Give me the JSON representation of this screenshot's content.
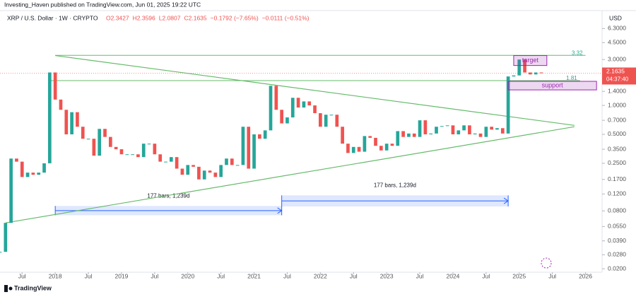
{
  "header": {
    "publisher": "Investing_Haven published on TradingView.com, Jun 01, 2025 19:22 UTC"
  },
  "footer": {
    "brand": "TradingView"
  },
  "chart_data": {
    "type": "candlestick",
    "symbol": "XRP / U.S. Dollar · 1W · CRYPTO",
    "ohlc": [
      "O2.3427",
      "H2.3596",
      "L2.0807",
      "C2.1635",
      "−0.1792 (−7.65%)"
    ],
    "extra": "−0.0111 (−0.51%)",
    "currency": "USD",
    "log_scale": true,
    "up_color": "#26a69a",
    "down_color": "#ef5350",
    "x": [
      "2017-03",
      "2017-04",
      "2017-05",
      "2017-06",
      "2017-07",
      "2017-08",
      "2017-09",
      "2017-10",
      "2017-11",
      "2017-12",
      "2018-01",
      "2018-02",
      "2018-03",
      "2018-04",
      "2018-05",
      "2018-06",
      "2018-07",
      "2018-08",
      "2018-09",
      "2018-10",
      "2018-11",
      "2018-12",
      "2019-01",
      "2019-02",
      "2019-03",
      "2019-04",
      "2019-05",
      "2019-06",
      "2019-07",
      "2019-08",
      "2019-09",
      "2019-10",
      "2019-11",
      "2019-12",
      "2020-01",
      "2020-02",
      "2020-03",
      "2020-04",
      "2020-05",
      "2020-06",
      "2020-07",
      "2020-08",
      "2020-09",
      "2020-10",
      "2020-11",
      "2020-12",
      "2021-01",
      "2021-02",
      "2021-03",
      "2021-04",
      "2021-05",
      "2021-06",
      "2021-07",
      "2021-08",
      "2021-09",
      "2021-10",
      "2021-11",
      "2021-12",
      "2022-01",
      "2022-02",
      "2022-03",
      "2022-04",
      "2022-05",
      "2022-06",
      "2022-07",
      "2022-08",
      "2022-09",
      "2022-10",
      "2022-11",
      "2022-12",
      "2023-01",
      "2023-02",
      "2023-03",
      "2023-04",
      "2023-05",
      "2023-06",
      "2023-07",
      "2023-08",
      "2023-09",
      "2023-10",
      "2023-11",
      "2023-12",
      "2024-01",
      "2024-02",
      "2024-03",
      "2024-04",
      "2024-05",
      "2024-06",
      "2024-07",
      "2024-08",
      "2024-09",
      "2024-10",
      "2024-11",
      "2024-12",
      "2025-01",
      "2025-02",
      "2025-03",
      "2025-04",
      "2025-05"
    ],
    "values": [
      0.03,
      0.06,
      0.28,
      0.26,
      0.18,
      0.2,
      0.19,
      0.2,
      0.25,
      2.2,
      1.15,
      0.9,
      0.5,
      0.85,
      0.6,
      0.45,
      0.45,
      0.3,
      0.57,
      0.47,
      0.37,
      0.35,
      0.31,
      0.31,
      0.31,
      0.29,
      0.4,
      0.4,
      0.31,
      0.26,
      0.26,
      0.29,
      0.22,
      0.19,
      0.24,
      0.23,
      0.17,
      0.21,
      0.2,
      0.18,
      0.24,
      0.28,
      0.24,
      0.24,
      0.6,
      0.22,
      0.5,
      0.45,
      0.55,
      1.6,
      0.9,
      0.65,
      0.75,
      1.2,
      0.95,
      1.1,
      1.0,
      0.83,
      0.6,
      0.8,
      0.8,
      0.6,
      0.4,
      0.32,
      0.37,
      0.33,
      0.48,
      0.46,
      0.38,
      0.34,
      0.4,
      0.38,
      0.54,
      0.47,
      0.51,
      0.47,
      0.7,
      0.5,
      0.51,
      0.6,
      0.61,
      0.62,
      0.5,
      0.55,
      0.62,
      0.5,
      0.51,
      0.47,
      0.6,
      0.56,
      0.58,
      0.51,
      2.0,
      2.05,
      3.0,
      2.2,
      2.1,
      2.2,
      2.16
    ],
    "current_price": 2.1635,
    "countdown": "04:37:40",
    "xlim": [
      "2017-03",
      "2026-04"
    ],
    "xticks": [
      {
        "value": "2017-07",
        "label": "Jul"
      },
      {
        "value": "2018-01",
        "label": "2018"
      },
      {
        "value": "2018-07",
        "label": "Jul"
      },
      {
        "value": "2019-01",
        "label": "2019"
      },
      {
        "value": "2019-07",
        "label": "Jul"
      },
      {
        "value": "2020-01",
        "label": "2020"
      },
      {
        "value": "2020-07",
        "label": "Jul"
      },
      {
        "value": "2021-01",
        "label": "2021"
      },
      {
        "value": "2021-07",
        "label": "Jul"
      },
      {
        "value": "2022-01",
        "label": "2022"
      },
      {
        "value": "2022-07",
        "label": "Jul"
      },
      {
        "value": "2023-01",
        "label": "2023"
      },
      {
        "value": "2023-07",
        "label": "Jul"
      },
      {
        "value": "2024-01",
        "label": "2024"
      },
      {
        "value": "2024-07",
        "label": "Jul"
      },
      {
        "value": "2025-01",
        "label": "2025"
      },
      {
        "value": "2025-07",
        "label": "Jul"
      },
      {
        "value": "2026-01",
        "label": "2026"
      }
    ],
    "ylim": [
      0.0184,
      9.2
    ],
    "yticks": [
      {
        "value": 6.3,
        "label": "6.3000"
      },
      {
        "value": 4.5,
        "label": "4.5000"
      },
      {
        "value": 3,
        "label": "3.0000"
      },
      {
        "value": 1.4,
        "label": "1.4000"
      },
      {
        "value": 1,
        "label": "1.0000"
      },
      {
        "value": 0.7,
        "label": "0.7000"
      },
      {
        "value": 0.5,
        "label": "0.5000"
      },
      {
        "value": 0.35,
        "label": "0.3500"
      },
      {
        "value": 0.25,
        "label": "0.2500"
      },
      {
        "value": 0.17,
        "label": "0.1700"
      },
      {
        "value": 0.12,
        "label": "0.1200"
      },
      {
        "value": 0.08,
        "label": "0.0800"
      },
      {
        "value": 0.055,
        "label": "0.0550"
      },
      {
        "value": 0.039,
        "label": "0.0390"
      },
      {
        "value": 0.028,
        "label": "0.0280"
      },
      {
        "value": 0.02,
        "label": "0.0200"
      }
    ],
    "levels": [
      {
        "value": 3.32,
        "label": "3.32",
        "x": [
          "2018-01",
          "2026-01"
        ]
      },
      {
        "value": 1.81,
        "label": "1.81",
        "x": [
          "2017-12",
          "2025-12"
        ]
      }
    ],
    "trendlines": [
      {
        "x": [
          "2018-01",
          "2025-11"
        ],
        "y": [
          3.3,
          0.62
        ]
      },
      {
        "x": [
          "2017-04",
          "2025-11"
        ],
        "y": [
          0.06,
          0.6
        ]
      }
    ],
    "zones": [
      {
        "label": "target",
        "x": [
          "2024-12",
          "2025-06"
        ],
        "y": [
          2.6,
          3.3
        ],
        "color": "#9c27b0"
      },
      {
        "label": "support",
        "x": [
          "2024-11",
          "2026-03"
        ],
        "y": [
          1.45,
          1.78
        ],
        "color": "#9c27b0"
      }
    ],
    "ranges": [
      {
        "label": "177 bars, 1,239d",
        "x": [
          "2018-01",
          "2021-06"
        ],
        "y": [
          0.072,
          0.09
        ]
      },
      {
        "label": "177 bars, 1,239d",
        "x": [
          "2021-06",
          "2024-11"
        ],
        "y": [
          0.089,
          0.116
        ]
      }
    ]
  }
}
